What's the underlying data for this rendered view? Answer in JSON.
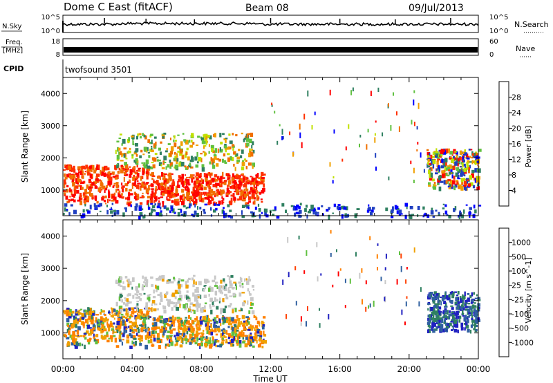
{
  "header": {
    "station": "Dome C East (fitACF)",
    "beam": "Beam 08",
    "date": "09/Jul/2013"
  },
  "strips": {
    "nsky": {
      "label": "N.Sky",
      "ticks_left": [
        "10^5",
        "10^0"
      ],
      "ticks_right": [
        "10^5",
        "10^0"
      ],
      "right_label": "N.Search"
    },
    "freq": {
      "label_line1": "Freq.",
      "label_line2": "[MHz]",
      "ticks_left": [
        "18",
        "8"
      ],
      "ticks_right": [
        "60",
        "0"
      ],
      "right_label": "Nave"
    },
    "cpid": {
      "label": "CPID",
      "value": "twofsound 3501"
    }
  },
  "chart_data": [
    {
      "type": "heatmap",
      "title": "",
      "ylabel": "Slant Range [km]",
      "xlabel": "",
      "x_range_hours": [
        0,
        24
      ],
      "ylim": [
        200,
        4500
      ],
      "yticks": [
        "4000",
        "3000",
        "2000",
        "1000"
      ],
      "colorbar": {
        "label": "Power [dB]",
        "ticks": [
          "28",
          "24",
          "20",
          "16",
          "12",
          "8",
          "4"
        ],
        "colors": [
          "#0000ff",
          "#2040c0",
          "#2f8060",
          "#60c040",
          "#c0e000",
          "#f0a000",
          "#f07000",
          "#ff3000",
          "#ff0000"
        ]
      },
      "regions": [
        {
          "name": "main-echo",
          "x": [
            0,
            11.6
          ],
          "y": [
            600,
            1800
          ],
          "level": "high"
        },
        {
          "name": "upper-scatter",
          "x": [
            3,
            11
          ],
          "y": [
            1700,
            2800
          ],
          "level": "medium"
        },
        {
          "name": "cusp-patch",
          "x": [
            21,
            24
          ],
          "y": [
            1100,
            2300
          ],
          "level": "mixed"
        },
        {
          "name": "near-range-noise",
          "x": [
            0,
            24
          ],
          "y": [
            200,
            600
          ],
          "level": "low"
        }
      ]
    },
    {
      "type": "heatmap",
      "title": "",
      "ylabel": "Slant Range [km]",
      "xlabel": "Time UT",
      "x_range_hours": [
        0,
        24
      ],
      "xticks": [
        "00:00",
        "04:00",
        "08:00",
        "12:00",
        "16:00",
        "20:00",
        "00:00"
      ],
      "ylim": [
        200,
        4500
      ],
      "yticks": [
        "4000",
        "3000",
        "2000",
        "1000"
      ],
      "colorbar": {
        "label": "Velocity [m s^-1]",
        "ticks": [
          "1000",
          "500",
          "100",
          "25",
          "-25",
          "-100",
          "-500",
          "-1000"
        ],
        "colors": [
          "#2020c0",
          "#3060a0",
          "#2f8060",
          "#60c040",
          "#c8c8c8",
          "#f0a000",
          "#ff8000",
          "#ff4000",
          "#ff0000"
        ]
      },
      "regions": [
        {
          "name": "main-echo",
          "x": [
            0,
            11.6
          ],
          "y": [
            600,
            1800
          ],
          "level": "negative"
        },
        {
          "name": "upper-scatter",
          "x": [
            3,
            11
          ],
          "y": [
            1700,
            2800
          ],
          "level": "near-zero"
        },
        {
          "name": "cusp-patch",
          "x": [
            21,
            24
          ],
          "y": [
            1100,
            2300
          ],
          "level": "positive"
        }
      ]
    }
  ]
}
